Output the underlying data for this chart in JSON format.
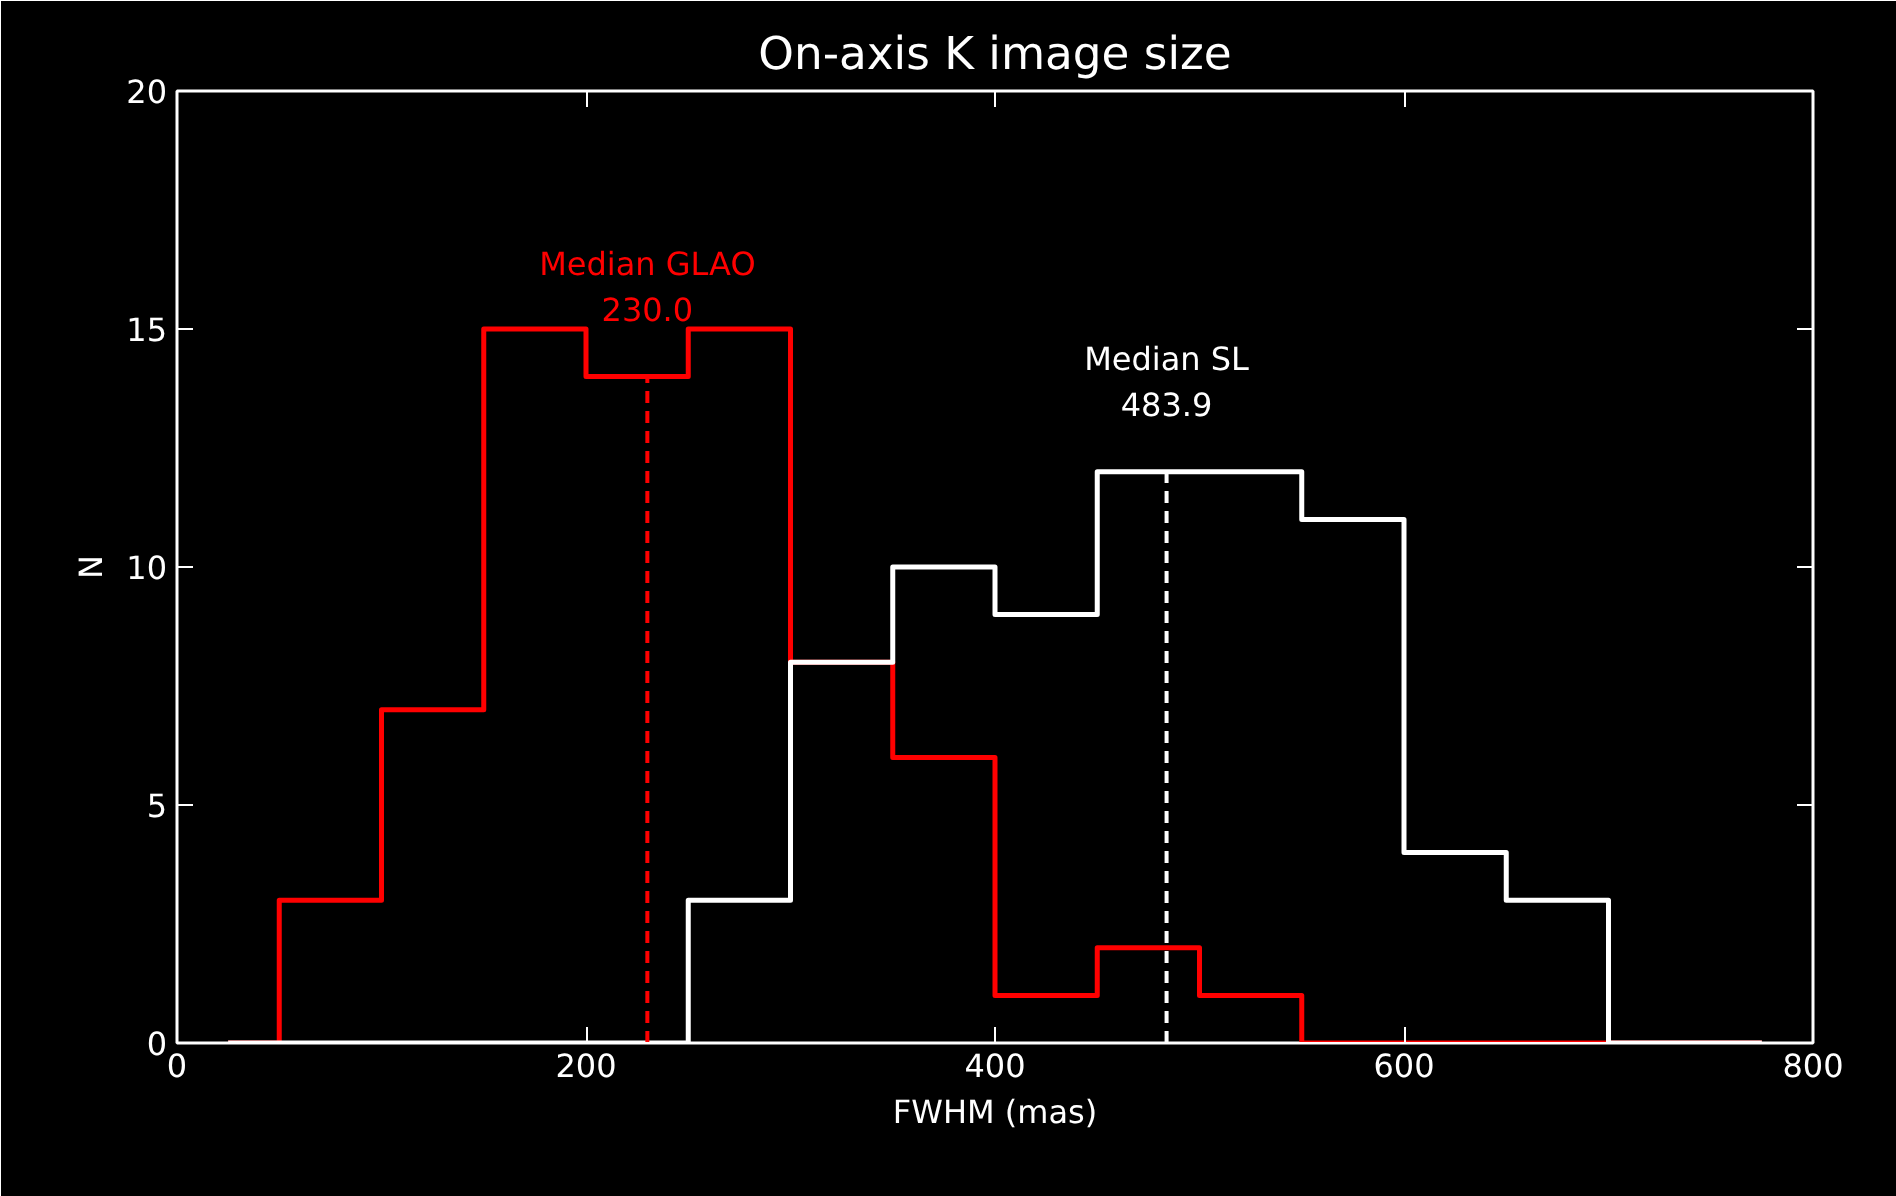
{
  "chart_data": {
    "type": "histogram",
    "title": "On-axis K image size",
    "xlabel": "FWHM (mas)",
    "ylabel": "N",
    "bins": [
      25,
      50,
      100,
      150,
      200,
      250,
      300,
      350,
      400,
      450,
      500,
      550,
      600,
      650,
      700,
      750,
      775
    ],
    "series": [
      {
        "color": "#ff0000",
        "values": [
          0,
          3,
          7,
          15,
          14,
          15,
          8,
          6,
          1,
          2,
          1,
          0,
          0,
          0,
          0,
          0
        ]
      },
      {
        "color": "#ffffff",
        "values": [
          0,
          0,
          0,
          0,
          0,
          3,
          8,
          10,
          9,
          12,
          12,
          11,
          4,
          3,
          0,
          0
        ]
      }
    ],
    "xlim": [
      0,
      800
    ],
    "xticks": [
      0,
      200,
      400,
      600,
      800
    ],
    "ylim": [
      0,
      20
    ],
    "yticks": [
      0,
      5,
      10,
      15,
      20
    ],
    "ref_lines": [
      {
        "axis": "x",
        "value": 230.0,
        "label": "Median GLAO\n230.0",
        "color": "#ff0000",
        "line_style": "dashed"
      },
      {
        "axis": "x",
        "value": 483.9,
        "label": "Median SL\n483.9",
        "color": "#ffffff",
        "line_style": "dashed"
      }
    ]
  }
}
